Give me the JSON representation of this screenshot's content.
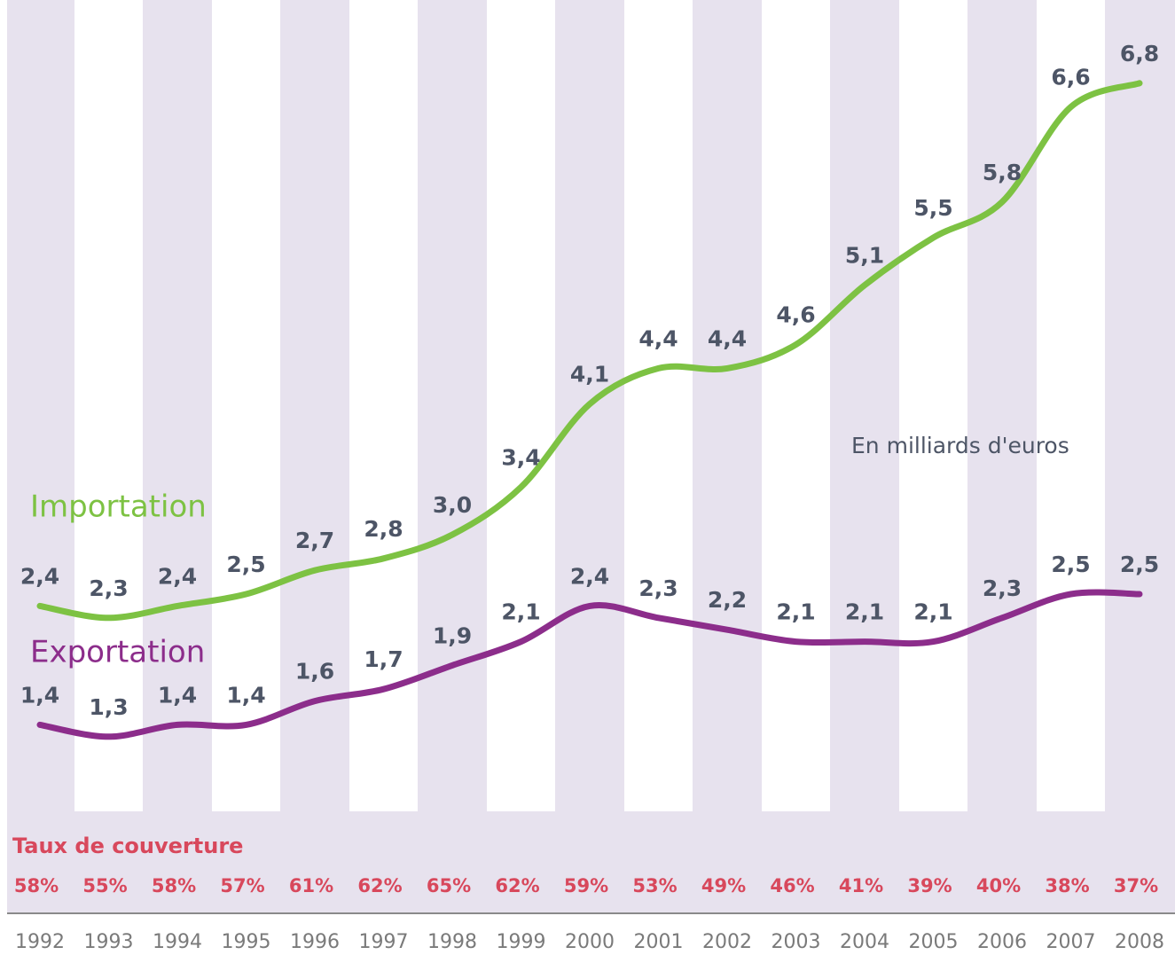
{
  "chart_data": {
    "type": "line",
    "annotation": "En milliards d'euros",
    "categories": [
      "1992",
      "1993",
      "1994",
      "1995",
      "1996",
      "1997",
      "1998",
      "1999",
      "2000",
      "2001",
      "2002",
      "2003",
      "2004",
      "2005",
      "2006",
      "2007",
      "2008"
    ],
    "series": [
      {
        "name": "Importation",
        "color": "#7dc243",
        "values": [
          2.4,
          2.3,
          2.4,
          2.5,
          2.7,
          2.8,
          3.0,
          3.4,
          4.1,
          4.4,
          4.4,
          4.6,
          5.1,
          5.5,
          5.8,
          6.6,
          6.8
        ],
        "value_labels": [
          "2,4",
          "2,3",
          "2,4",
          "2,5",
          "2,7",
          "2,8",
          "3,0",
          "3,4",
          "4,1",
          "4,4",
          "4,4",
          "4,6",
          "5,1",
          "5,5",
          "5,8",
          "6,6",
          "6,8"
        ]
      },
      {
        "name": "Exportation",
        "color": "#8c2d8b",
        "values": [
          1.4,
          1.3,
          1.4,
          1.4,
          1.6,
          1.7,
          1.9,
          2.1,
          2.4,
          2.3,
          2.2,
          2.1,
          2.1,
          2.1,
          2.3,
          2.5,
          2.5
        ],
        "value_labels": [
          "1,4",
          "1,3",
          "1,4",
          "1,4",
          "1,6",
          "1,7",
          "1,9",
          "2,1",
          "2,4",
          "2,3",
          "2,2",
          "2,1",
          "2,1",
          "2,1",
          "2,3",
          "2,5",
          "2,5"
        ]
      }
    ],
    "ylim": [
      0,
      7.5
    ],
    "coverage_title": "Taux de couverture",
    "coverage_rates": [
      "58%",
      "55%",
      "58%",
      "57%",
      "61%",
      "62%",
      "65%",
      "62%",
      "59%",
      "53%",
      "49%",
      "46%",
      "41%",
      "39%",
      "40%",
      "38%",
      "37%"
    ]
  }
}
